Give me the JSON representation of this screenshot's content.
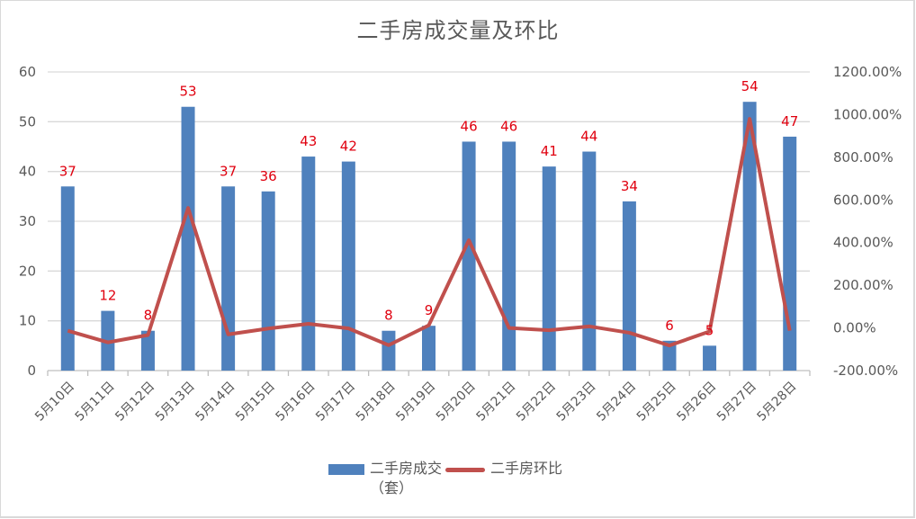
{
  "chart_data": {
    "type": "bar+line",
    "title": "二手房成交量及环比",
    "categories": [
      "5月10日",
      "5月11日",
      "5月12日",
      "5月13日",
      "5月14日",
      "5月15日",
      "5月16日",
      "5月17日",
      "5月18日",
      "5月19日",
      "5月20日",
      "5月21日",
      "5月22日",
      "5月23日",
      "5月24日",
      "5月25日",
      "5月26日",
      "5月27日",
      "5月28日"
    ],
    "series": [
      {
        "name": "二手房成交（套）",
        "type": "bar",
        "axis": "left",
        "color": "#4F81BD",
        "values": [
          37,
          12,
          8,
          53,
          37,
          36,
          43,
          42,
          8,
          9,
          46,
          46,
          41,
          44,
          34,
          6,
          5,
          54,
          47
        ],
        "data_labels": true
      },
      {
        "name": "二手房环比",
        "type": "line",
        "axis": "right",
        "color": "#C0504D",
        "unit": "%",
        "values": [
          -13.0,
          -67.57,
          -33.33,
          562.5,
          -30.19,
          -2.7,
          19.44,
          -2.33,
          -80.95,
          12.5,
          411.11,
          0.0,
          -10.87,
          7.32,
          -22.73,
          -82.35,
          -16.67,
          980.0,
          -12.96
        ]
      }
    ],
    "left_axis": {
      "ylim": [
        0,
        60
      ],
      "ticks": [
        "0",
        "10",
        "20",
        "30",
        "40",
        "50",
        "60"
      ]
    },
    "right_axis": {
      "ylim": [
        -200,
        1200
      ],
      "ticks": [
        "-200.00%",
        "0.00%",
        "200.00%",
        "400.00%",
        "600.00%",
        "800.00%",
        "1000.00%",
        "1200.00%"
      ]
    },
    "grid": true,
    "legend_position": "bottom",
    "data_label_color": "#E0000F"
  },
  "legend": {
    "bar_label_line1": "二手房成交",
    "bar_label_line2": "（套）",
    "line_label": "二手房环比"
  }
}
